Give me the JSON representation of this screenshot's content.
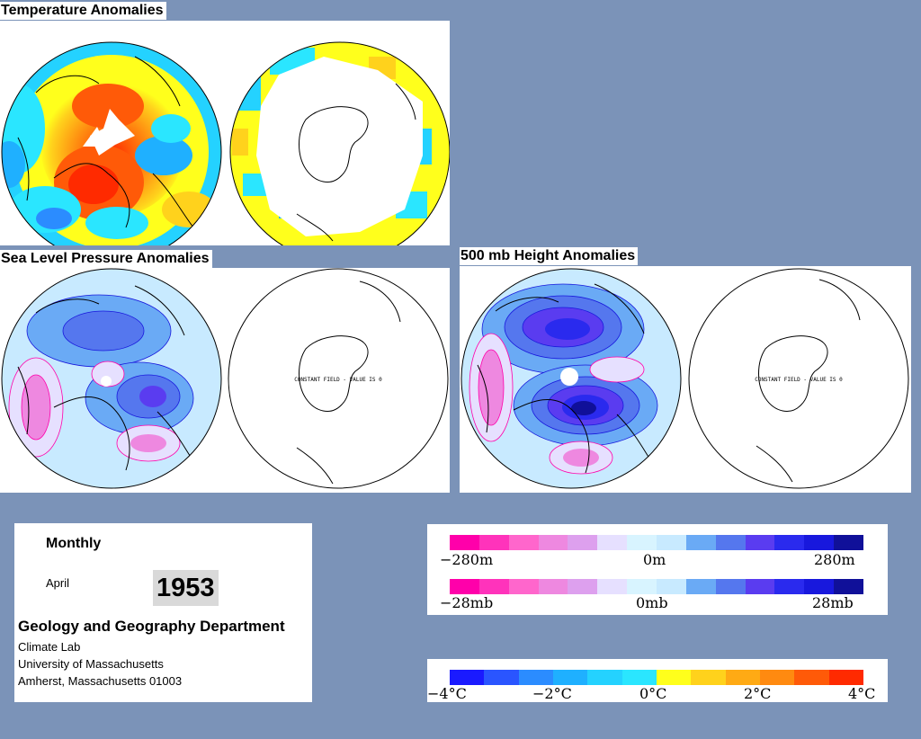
{
  "sections": {
    "temperature": "Temperature Anomalies",
    "slp": "Sea Level Pressure Anomalies",
    "height500": "500 mb Height Anomalies"
  },
  "map_notes": {
    "constant_field": "CONSTANT FIELD - VALUE IS 0"
  },
  "info": {
    "period": "Monthly",
    "month": "April",
    "year": "1953",
    "department": "Geology and Geography Department",
    "lab": "Climate Lab",
    "university": "University of Massachusetts",
    "address": "Amherst, Massachusetts 01003"
  },
  "legends": {
    "height": {
      "min": "−280m",
      "mid": "0m",
      "max": "280m"
    },
    "pressure": {
      "min": "−28mb",
      "mid": "0mb",
      "max": "28mb"
    },
    "temperature": {
      "t1": "−4°C",
      "t2": "−2°C",
      "t3": "0°C",
      "t4": "2°C",
      "t5": "4°C"
    }
  },
  "colors": {
    "background": "#7b93b8",
    "anomaly_scale": [
      "#ff00aa",
      "#ff33bb",
      "#ff66cc",
      "#ee88e0",
      "#dda0ee",
      "#e6e0ff",
      "#d8f4ff",
      "#c8eaff",
      "#6aaaf5",
      "#5577ee",
      "#5a3cf0",
      "#2a2aee",
      "#1818dd",
      "#101099"
    ],
    "temperature_scale": [
      "#1a1aff",
      "#2a55ff",
      "#2b8cff",
      "#1fb0ff",
      "#24d2ff",
      "#2ae6ff",
      "#ffff1c",
      "#ffd21c",
      "#ffaa14",
      "#ff8a10",
      "#ff5a08",
      "#ff2a00"
    ]
  }
}
